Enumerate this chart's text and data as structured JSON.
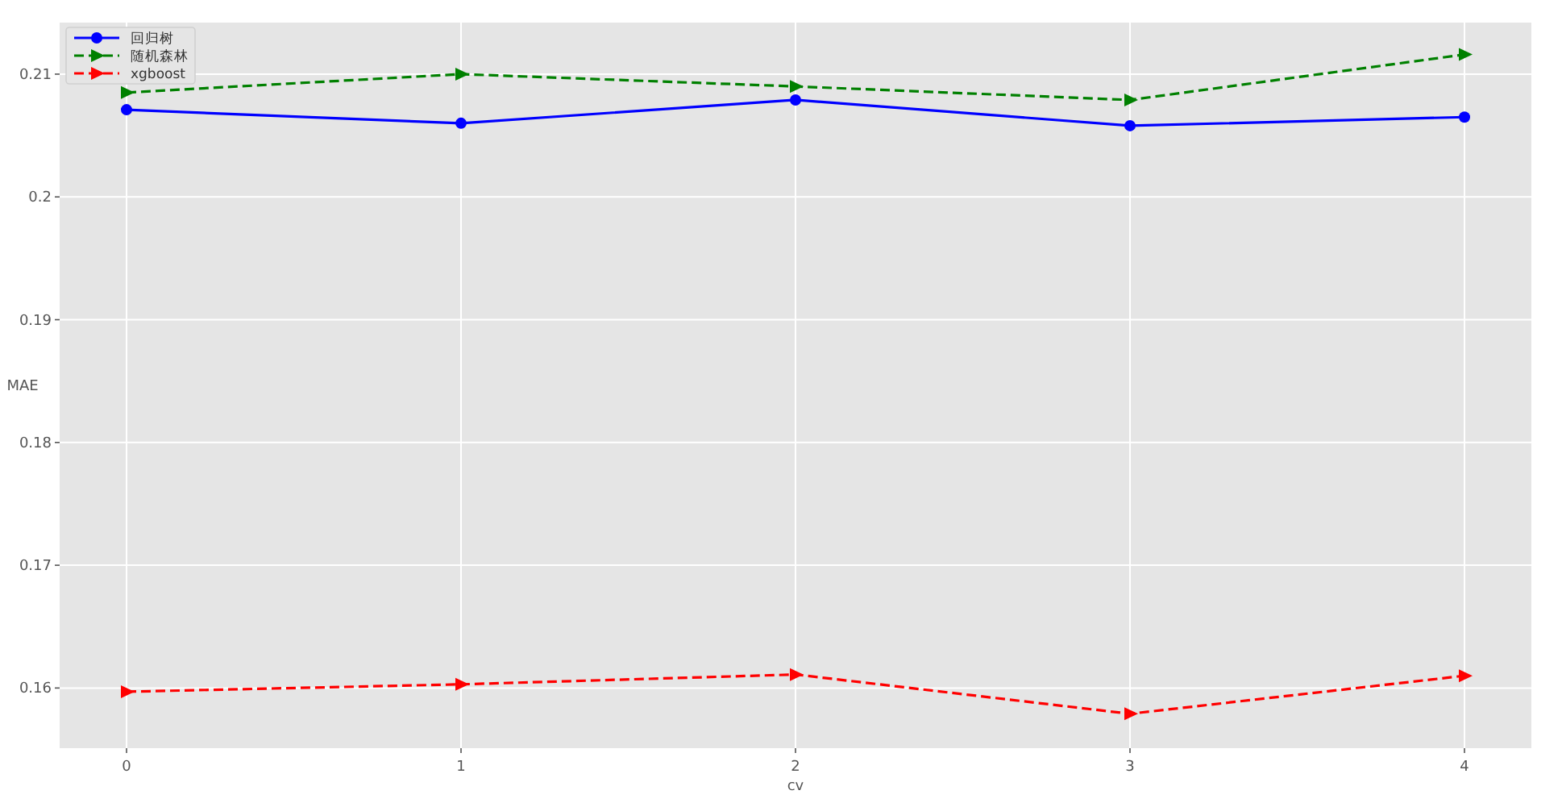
{
  "chart_data": {
    "type": "line",
    "xlabel": "cv",
    "ylabel": "MAE",
    "x": [
      0,
      1,
      2,
      3,
      4
    ],
    "series": [
      {
        "name": "回归树",
        "color": "#0000ff",
        "marker": "circle",
        "line_style": "solid",
        "values": [
          0.2071,
          0.206,
          0.2079,
          0.2058,
          0.2065
        ]
      },
      {
        "name": "随机森林",
        "color": "#008000",
        "marker": "triangle",
        "line_style": "dashed",
        "values": [
          0.2085,
          0.21,
          0.209,
          0.2079,
          0.2116
        ]
      },
      {
        "name": "xgboost",
        "color": "#ff0000",
        "marker": "triangle",
        "line_style": "dashed",
        "values": [
          0.1597,
          0.1603,
          0.1611,
          0.1579,
          0.161
        ]
      }
    ],
    "xlim": [
      -0.2,
      4.2
    ],
    "ylim": [
      0.1551,
      0.2142
    ],
    "xticks": [
      0,
      1,
      2,
      3,
      4
    ],
    "yticks": [
      0.16,
      0.17,
      0.18,
      0.19,
      0.2,
      0.21
    ],
    "grid": true,
    "legend": "top left"
  }
}
